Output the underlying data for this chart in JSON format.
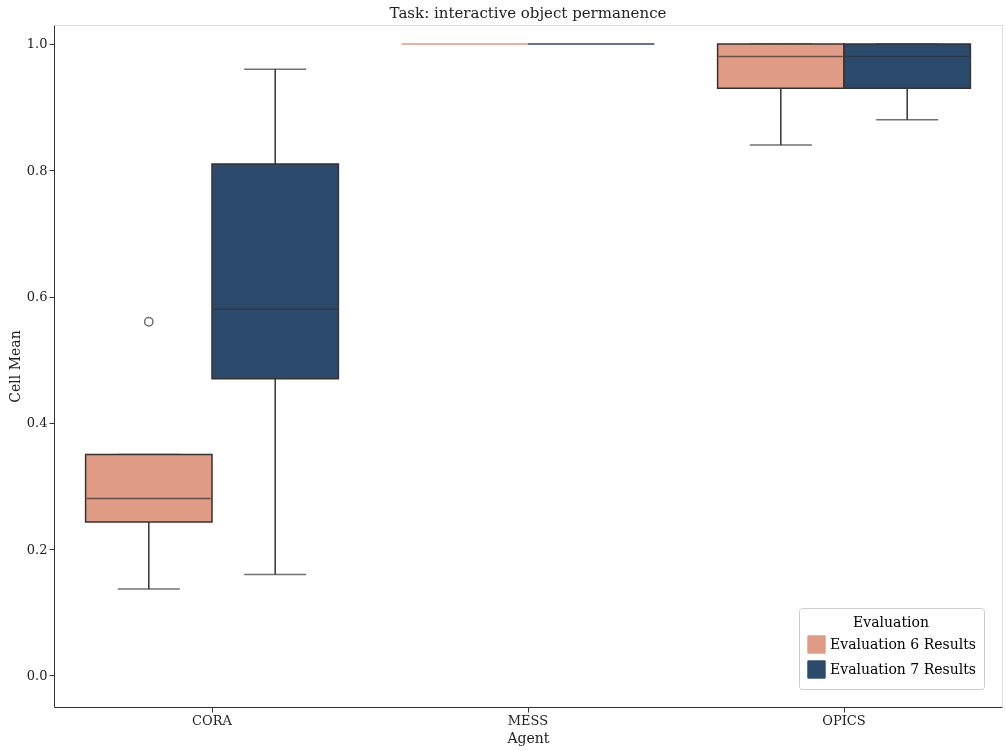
{
  "chart_data": {
    "type": "box",
    "title": "Task: interactive object permanence",
    "xlabel": "Agent",
    "ylabel": "Cell Mean",
    "legend_title": "Evaluation",
    "categories": [
      "CORA",
      "MESS",
      "OPICS"
    ],
    "series": [
      {
        "name": "Evaluation 6 Results",
        "color": "#e09c84",
        "boxes": [
          {
            "low": 0.137,
            "q1": 0.243,
            "median": 0.28,
            "q3": 0.35,
            "high": 0.35,
            "outliers": [
              0.56
            ]
          },
          {
            "low": 1.0,
            "q1": 1.0,
            "median": 1.0,
            "q3": 1.0,
            "high": 1.0
          },
          {
            "low": 0.84,
            "q1": 0.93,
            "median": 0.98,
            "q3": 1.0,
            "high": 1.0
          }
        ]
      },
      {
        "name": "Evaluation 7 Results",
        "color": "#2c4a6b",
        "boxes": [
          {
            "low": 0.16,
            "q1": 0.47,
            "median": 0.58,
            "q3": 0.81,
            "high": 0.96
          },
          {
            "low": 1.0,
            "q1": 1.0,
            "median": 1.0,
            "q3": 1.0,
            "high": 1.0
          },
          {
            "low": 0.88,
            "q1": 0.93,
            "median": 0.98,
            "q3": 1.0,
            "high": 1.0
          }
        ]
      }
    ],
    "ylim": [
      -0.05,
      1.03
    ],
    "yticks": [
      {
        "value": 0,
        "label": "0.0"
      },
      {
        "value": 0.2,
        "label": "0.2"
      },
      {
        "value": 0.4,
        "label": "0.4"
      },
      {
        "value": 0.6,
        "label": "0.6"
      },
      {
        "value": 0.8,
        "label": "0.8"
      },
      {
        "value": 1,
        "label": "1.0"
      }
    ],
    "grid": false,
    "legend": "bottom right"
  }
}
